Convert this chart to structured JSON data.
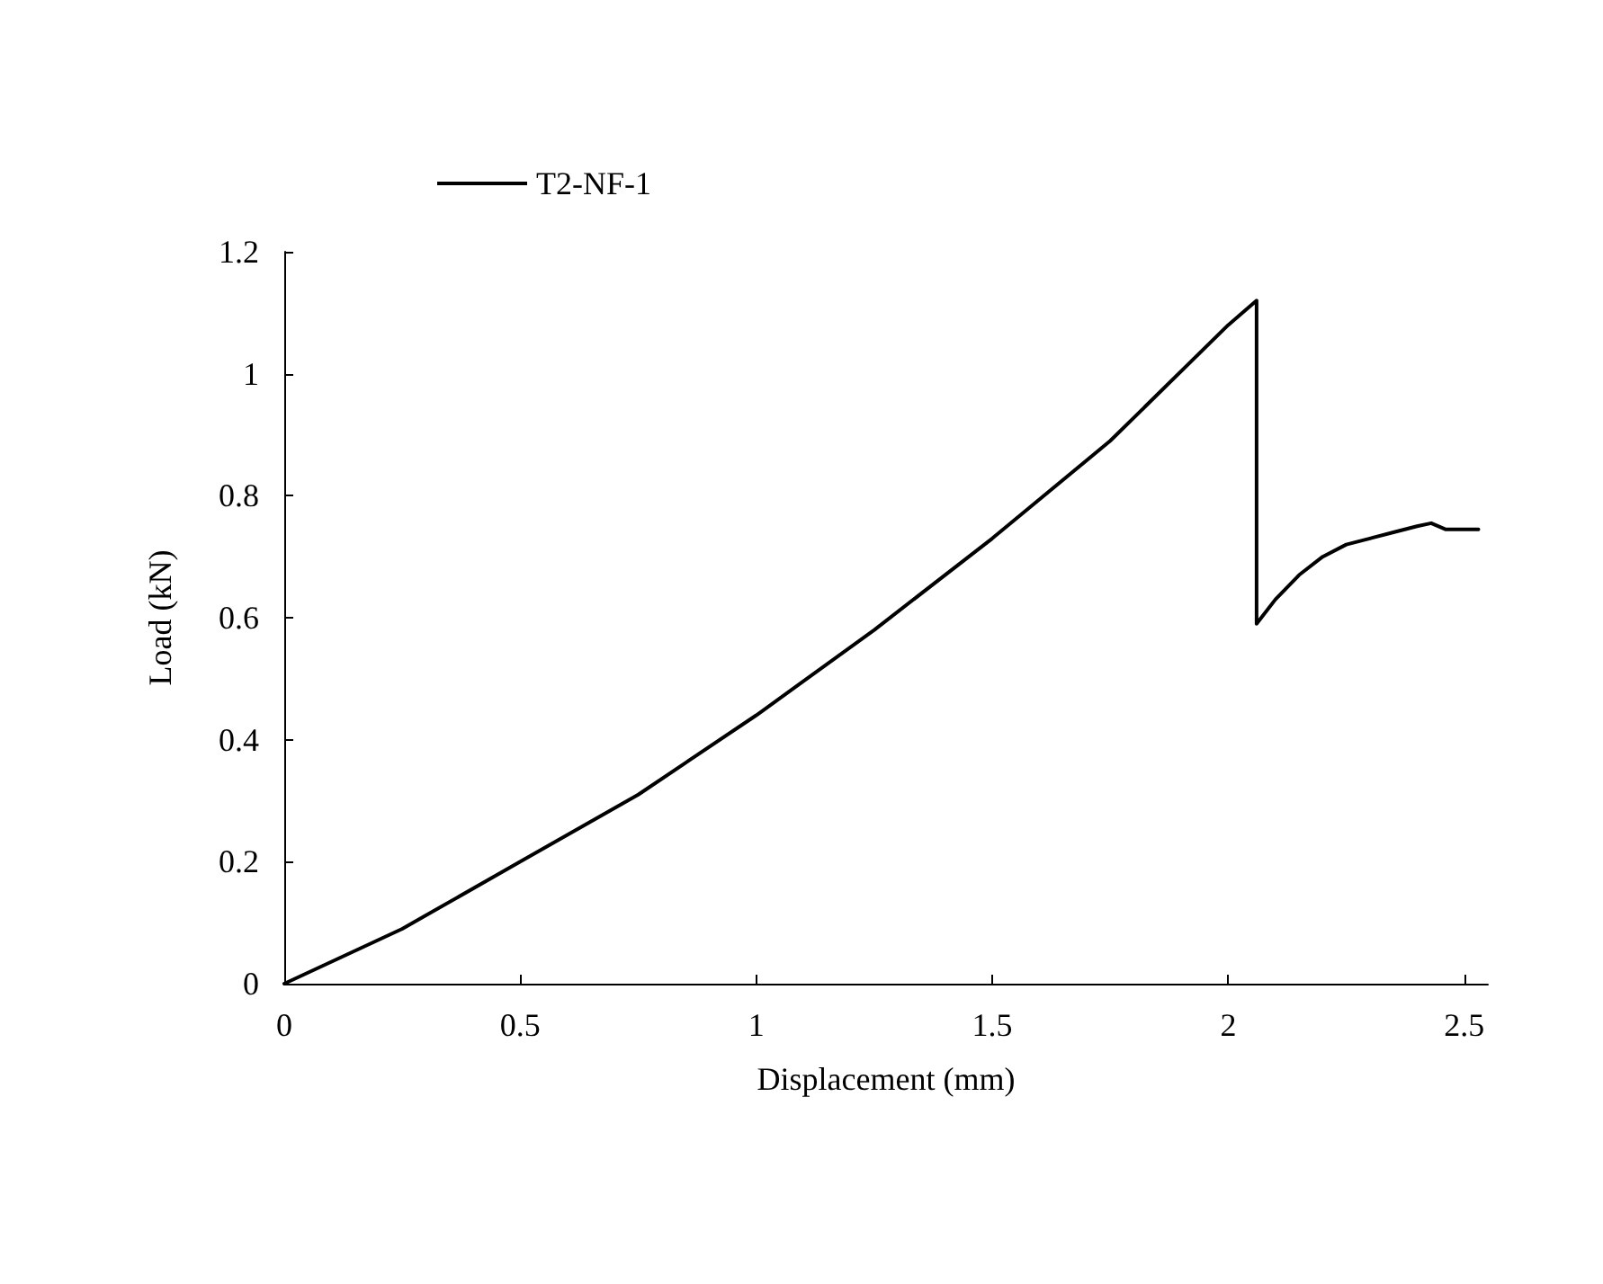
{
  "chart_data": {
    "type": "line",
    "xlabel": "Displacement (mm)",
    "ylabel": "Load (kN)",
    "xlim": [
      0,
      2.55
    ],
    "xticks": [
      0,
      0.5,
      1,
      1.5,
      2,
      2.5
    ],
    "ylim": [
      0,
      1.2
    ],
    "yticks": [
      0,
      0.2,
      0.4,
      0.6,
      0.8,
      1,
      1.2
    ],
    "grid": false,
    "legend": "top left",
    "marker": "none",
    "line_style": "solid",
    "series": [
      {
        "name": "T2-NF-1",
        "color": "#000000",
        "x": [
          0,
          0.25,
          0.5,
          0.75,
          1,
          1.25,
          1.5,
          1.75,
          2,
          2.06,
          2.06,
          2.1,
          2.15,
          2.2,
          2.25,
          2.3,
          2.35,
          2.4,
          2.43,
          2.46,
          2.5,
          2.53
        ],
        "values": [
          0,
          0.09,
          0.2,
          0.31,
          0.44,
          0.58,
          0.73,
          0.89,
          1.08,
          1.12,
          0.59,
          0.63,
          0.67,
          0.7,
          0.72,
          0.73,
          0.74,
          0.75,
          0.755,
          0.745,
          0.745,
          0.745
        ]
      }
    ]
  }
}
